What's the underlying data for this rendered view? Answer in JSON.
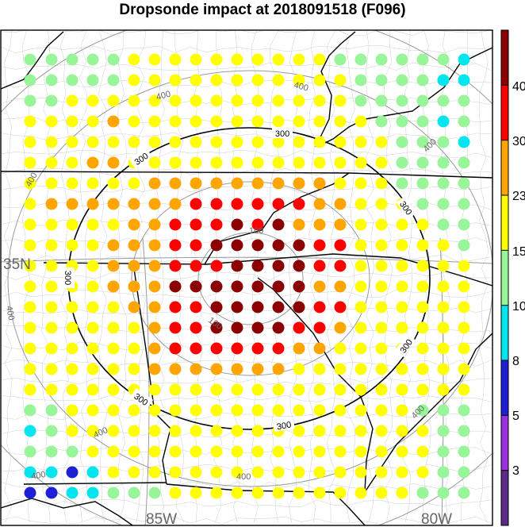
{
  "title": "Dropsonde impact at 2018091518 (F096)",
  "grid_labels": {
    "lat": "35N",
    "lon_left": "85W",
    "lon_right": "80W"
  },
  "contour_labels": {
    "black": [
      "300",
      "300",
      "300",
      "300",
      "300",
      "300",
      "300"
    ],
    "gray": [
      "400",
      "400",
      "400",
      "400",
      "400",
      "400",
      "400",
      "400",
      "400",
      "100",
      "100"
    ]
  },
  "colorbar": {
    "colors": [
      "#5b2a86",
      "#9b30e0",
      "#1f1fd6",
      "#00e5ee",
      "#98f598",
      "#ffff00",
      "#ffa500",
      "#ff0000",
      "#8b0000"
    ],
    "labels": [
      "3",
      "5",
      "8",
      "10",
      "15",
      "23",
      "30",
      "40"
    ]
  },
  "legend_colors": {
    "dark_red": "#8b0000",
    "red": "#ff0000",
    "orange": "#ffa500",
    "yellow": "#ffff00",
    "light_green": "#98f598",
    "cyan": "#00e5ee",
    "blue": "#1f1fd6"
  },
  "dots": {
    "columns_x": [
      38,
      65,
      91,
      117,
      143,
      169,
      195,
      221,
      247,
      273,
      299,
      325,
      351,
      377,
      403,
      429,
      455,
      481,
      507,
      533,
      559,
      585
    ],
    "rows_y": [
      75,
      101,
      127,
      153,
      179,
      205,
      231,
      257,
      283,
      309,
      335,
      361,
      387,
      413,
      439,
      465,
      491,
      517,
      543,
      569,
      595,
      621
    ],
    "grid": [
      "GGGGGYYYYYYYYYYGGGGGGC",
      "GGGGGYYYYYYYYYYYGGGGCC",
      "GGYYYYYYYYYYYYYYGGGGGG",
      "YYYYOYYYYYYYYYYYYGGGCG",
      "YYYYYYYYYYYYYYYYYYGGGC",
      "YYYOOYYYYYYYYYYYYYGGGG",
      "YYYYYYOOOOOOOOOYYYGGGG",
      "YOOOOOOORRRRRROOYYYGGG",
      "YYYYYOORRRDRDOOOYYYYGG",
      "YYYYOOORRDDDDDRRYYYYYG",
      "YYYYOOORRRDDDDRRYYYYYY",
      "YYYYOOODDDDDDDOOYYYYYY",
      "YYYYYOORRDDDDDRRYYYYYY",
      "YYYYYYORRDDDDRROYYYYYY",
      "YYYYYYORRRRRROOYYYYYYY",
      "YYYYYYOOOOOOOYYYYYYYYY",
      "YYYYYYYYYYYYYYYYYYYYYY",
      "GGYYYYYYYYYYYYYYYYYGGG",
      "CGYYYYYYYYYYYYYYYYYYGG",
      "GGGYYYYYYYYYYYYYYYYYGG",
      "CCBCYYYYYYYYYYYYYYYYGG",
      "BBCCGGGYYYYYYYYYYYYGGG"
    ]
  }
}
